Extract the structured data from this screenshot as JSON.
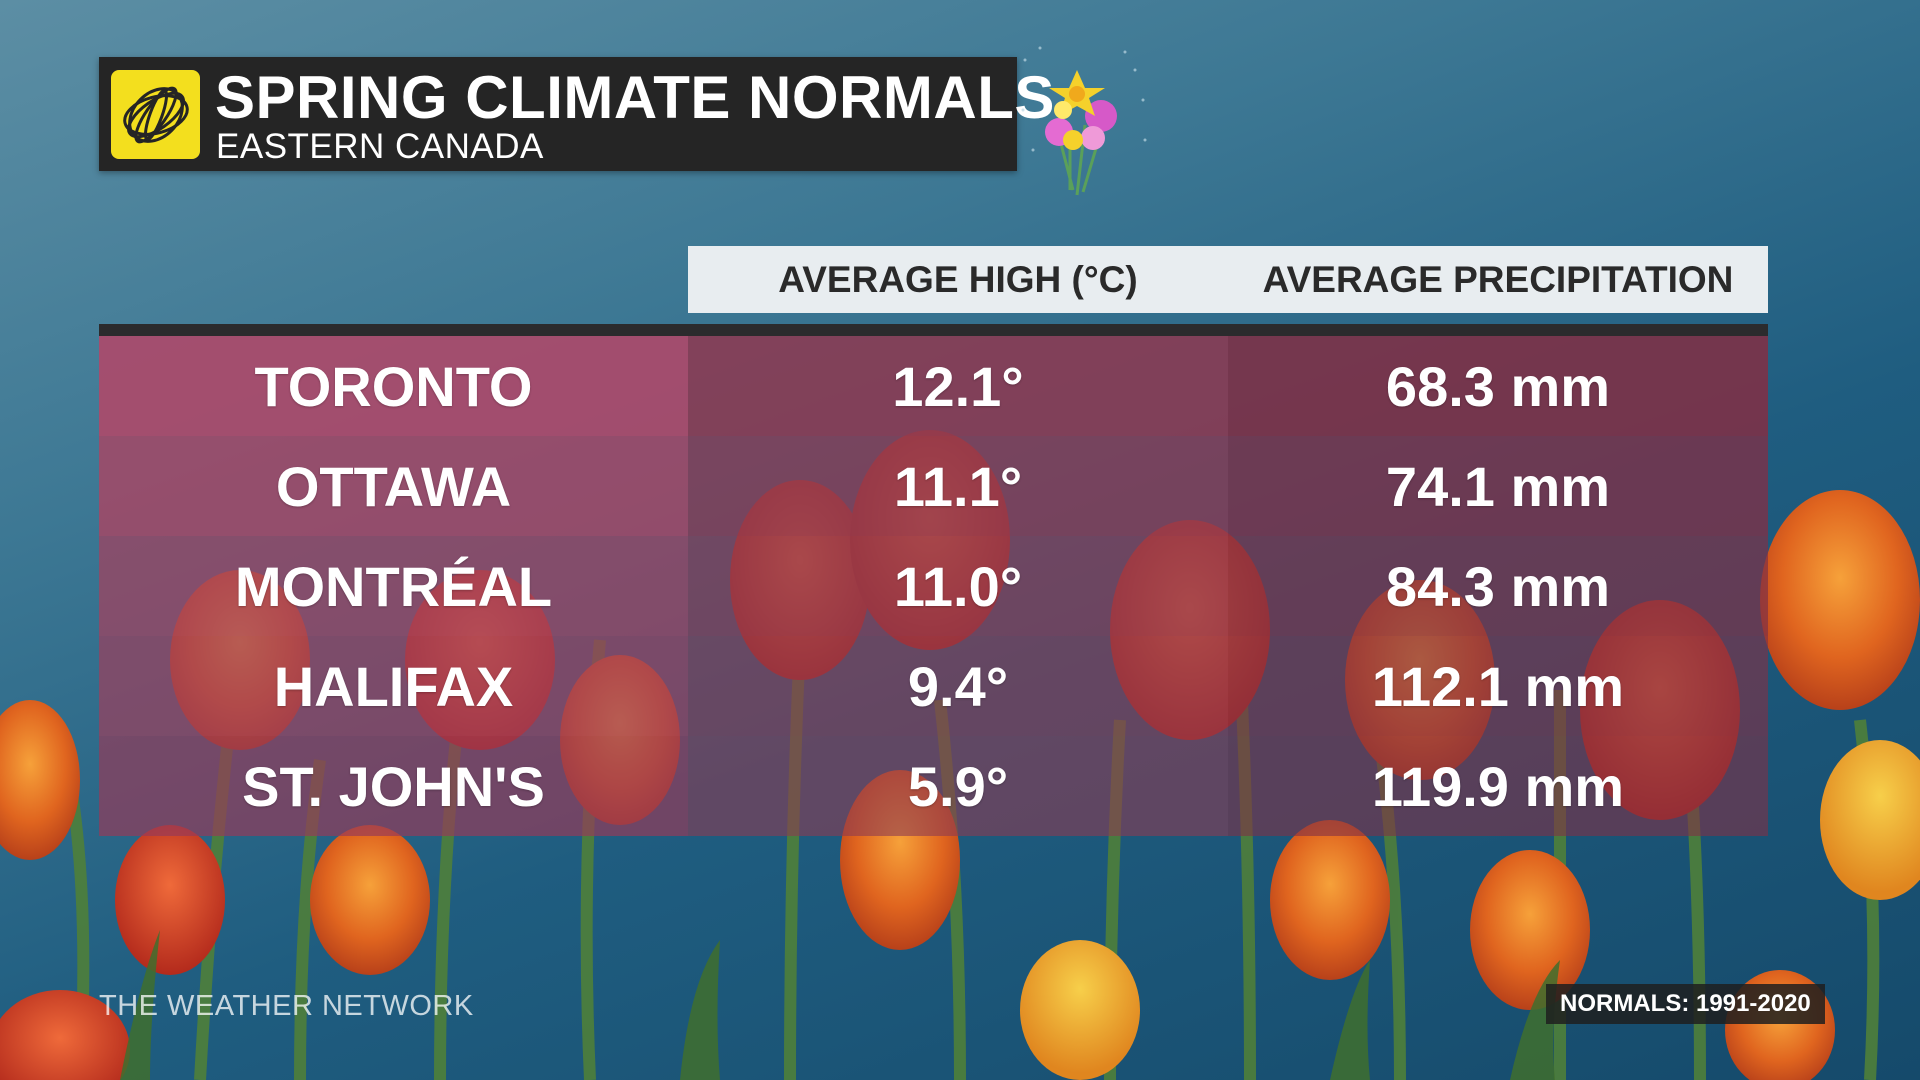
{
  "header": {
    "title": "SPRING CLIMATE NORMALS",
    "subtitle": "EASTERN CANADA"
  },
  "table": {
    "columns": [
      "AVERAGE HIGH (°C)",
      "AVERAGE PRECIPITATION"
    ],
    "rows": [
      {
        "city": "TORONTO",
        "high": "12.1°",
        "precip": "68.3 mm"
      },
      {
        "city": "OTTAWA",
        "high": "11.1°",
        "precip": "74.1 mm"
      },
      {
        "city": "MONTRÉAL",
        "high": "11.0°",
        "precip": "84.3 mm"
      },
      {
        "city": "HALIFAX",
        "high": "9.4°",
        "precip": "112.1 mm"
      },
      {
        "city": "ST. JOHN'S",
        "high": "5.9°",
        "precip": "119.9 mm"
      }
    ]
  },
  "footer": {
    "brand": "THE WEATHER NETWORK",
    "normals": "NORMALS: 1991-2020"
  },
  "colors": {
    "sky": "#1f5d80",
    "row_tint": "#a0465a",
    "header_bar": "#252525",
    "logo": "#f3df1e"
  },
  "icons": {
    "logo": "weather-network-logo-icon",
    "decoration": "flower-bouquet-icon"
  }
}
